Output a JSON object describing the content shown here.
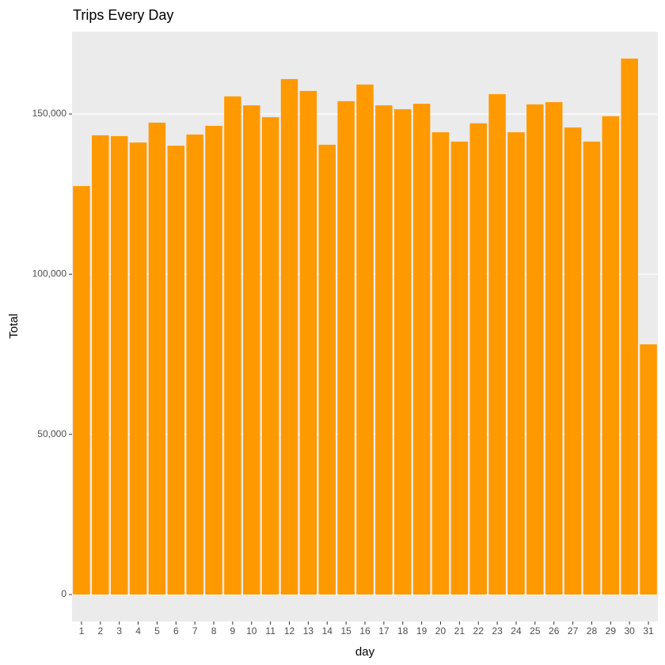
{
  "chart_data": {
    "type": "bar",
    "title": "Trips Every Day",
    "x_label": "day",
    "y_label": "Total",
    "categories": [
      "1",
      "2",
      "3",
      "4",
      "5",
      "6",
      "7",
      "8",
      "9",
      "10",
      "11",
      "12",
      "13",
      "14",
      "15",
      "16",
      "17",
      "18",
      "19",
      "20",
      "21",
      "22",
      "23",
      "24",
      "25",
      "26",
      "27",
      "28",
      "29",
      "30",
      "31"
    ],
    "values": [
      127500,
      143350,
      143100,
      141100,
      147300,
      140100,
      143600,
      146300,
      155500,
      152700,
      149000,
      160900,
      157200,
      140400,
      154000,
      159200,
      152700,
      151500,
      153200,
      144300,
      141400,
      147100,
      156200,
      144300,
      153000,
      153700,
      145800,
      141400,
      149300,
      167300,
      78100
    ],
    "color": "#ff9900",
    "ylim": [
      -8400,
      175700
    ],
    "yticks": [
      0,
      {
        "value": 50000,
        "label": "50,000"
      },
      {
        "value": 100000,
        "label": "100,000"
      },
      {
        "value": 150000,
        "label": "150,000"
      }
    ],
    "grid": true
  }
}
